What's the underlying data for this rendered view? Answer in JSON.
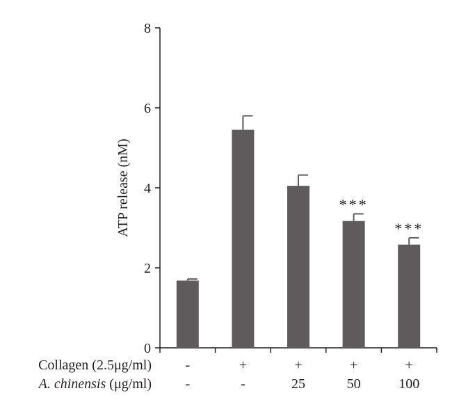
{
  "chart_data": {
    "type": "bar",
    "ylabel": "ATP release (nM)",
    "ylim": [
      0,
      8
    ],
    "yticks": [
      "0",
      "2",
      "4",
      "6",
      "8"
    ],
    "values": [
      1.68,
      5.45,
      4.05,
      3.17,
      2.58
    ],
    "errors": [
      0.04,
      0.35,
      0.27,
      0.18,
      0.17
    ],
    "annotations": [
      "",
      "",
      "",
      "***",
      "***"
    ],
    "bar_color": "#5f5b5c",
    "treatment_rows": [
      {
        "label_italic": "",
        "label_rest": "Collagen (2.5μg/ml)",
        "values": [
          "-",
          "+",
          "+",
          "+",
          "+"
        ]
      },
      {
        "label_italic": "A. chinensis",
        "label_rest": " (μg/ml)",
        "values": [
          "-",
          "-",
          "25",
          "50",
          "100"
        ]
      }
    ]
  }
}
